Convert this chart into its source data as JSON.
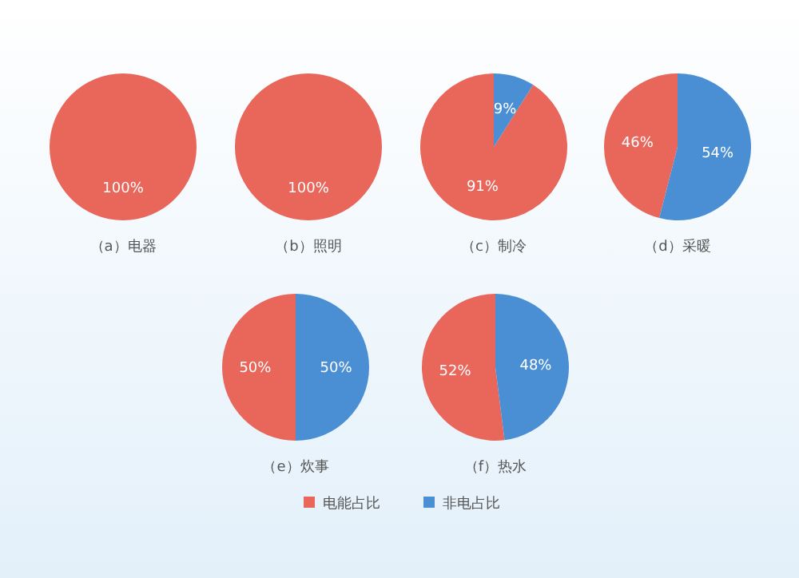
{
  "chart_data": [
    {
      "type": "pie",
      "title": "（a）电器",
      "categories": [
        null,
        null
      ],
      "values": [
        100,
        0
      ],
      "value_labels": [
        "100%",
        null
      ],
      "colors": [
        "#e8665a",
        "#4a8fd4"
      ]
    },
    {
      "type": "pie",
      "title": "（b）照明",
      "categories": [
        null,
        null
      ],
      "values": [
        100,
        0
      ],
      "value_labels": [
        "100%",
        null
      ],
      "colors": [
        "#e8665a",
        "#4a8fd4"
      ]
    },
    {
      "type": "pie",
      "title": "（c）制冷",
      "categories": [
        null,
        null
      ],
      "values": [
        91,
        9
      ],
      "value_labels": [
        "91%",
        "9%"
      ],
      "colors": [
        "#e8665a",
        "#4a8fd4"
      ]
    },
    {
      "type": "pie",
      "title": "（d）采暖",
      "categories": [
        null,
        null
      ],
      "values": [
        46,
        54
      ],
      "value_labels": [
        "46%",
        "54%"
      ],
      "colors": [
        "#e8665a",
        "#4a8fd4"
      ]
    },
    {
      "type": "pie",
      "title": "（e）炊事",
      "categories": [
        null,
        null
      ],
      "values": [
        50,
        50
      ],
      "value_labels": [
        "50%",
        "50%"
      ],
      "colors": [
        "#e8665a",
        "#4a8fd4"
      ]
    },
    {
      "type": "pie",
      "title": "（f）热水",
      "categories": [
        "电能占比",
        "非电占比"
      ],
      "values": [
        52,
        48
      ],
      "value_labels": [
        "52%",
        "48%"
      ],
      "colors": [
        "#e8665a",
        "#4a8fd4"
      ],
      "legend": "bottom"
    }
  ]
}
